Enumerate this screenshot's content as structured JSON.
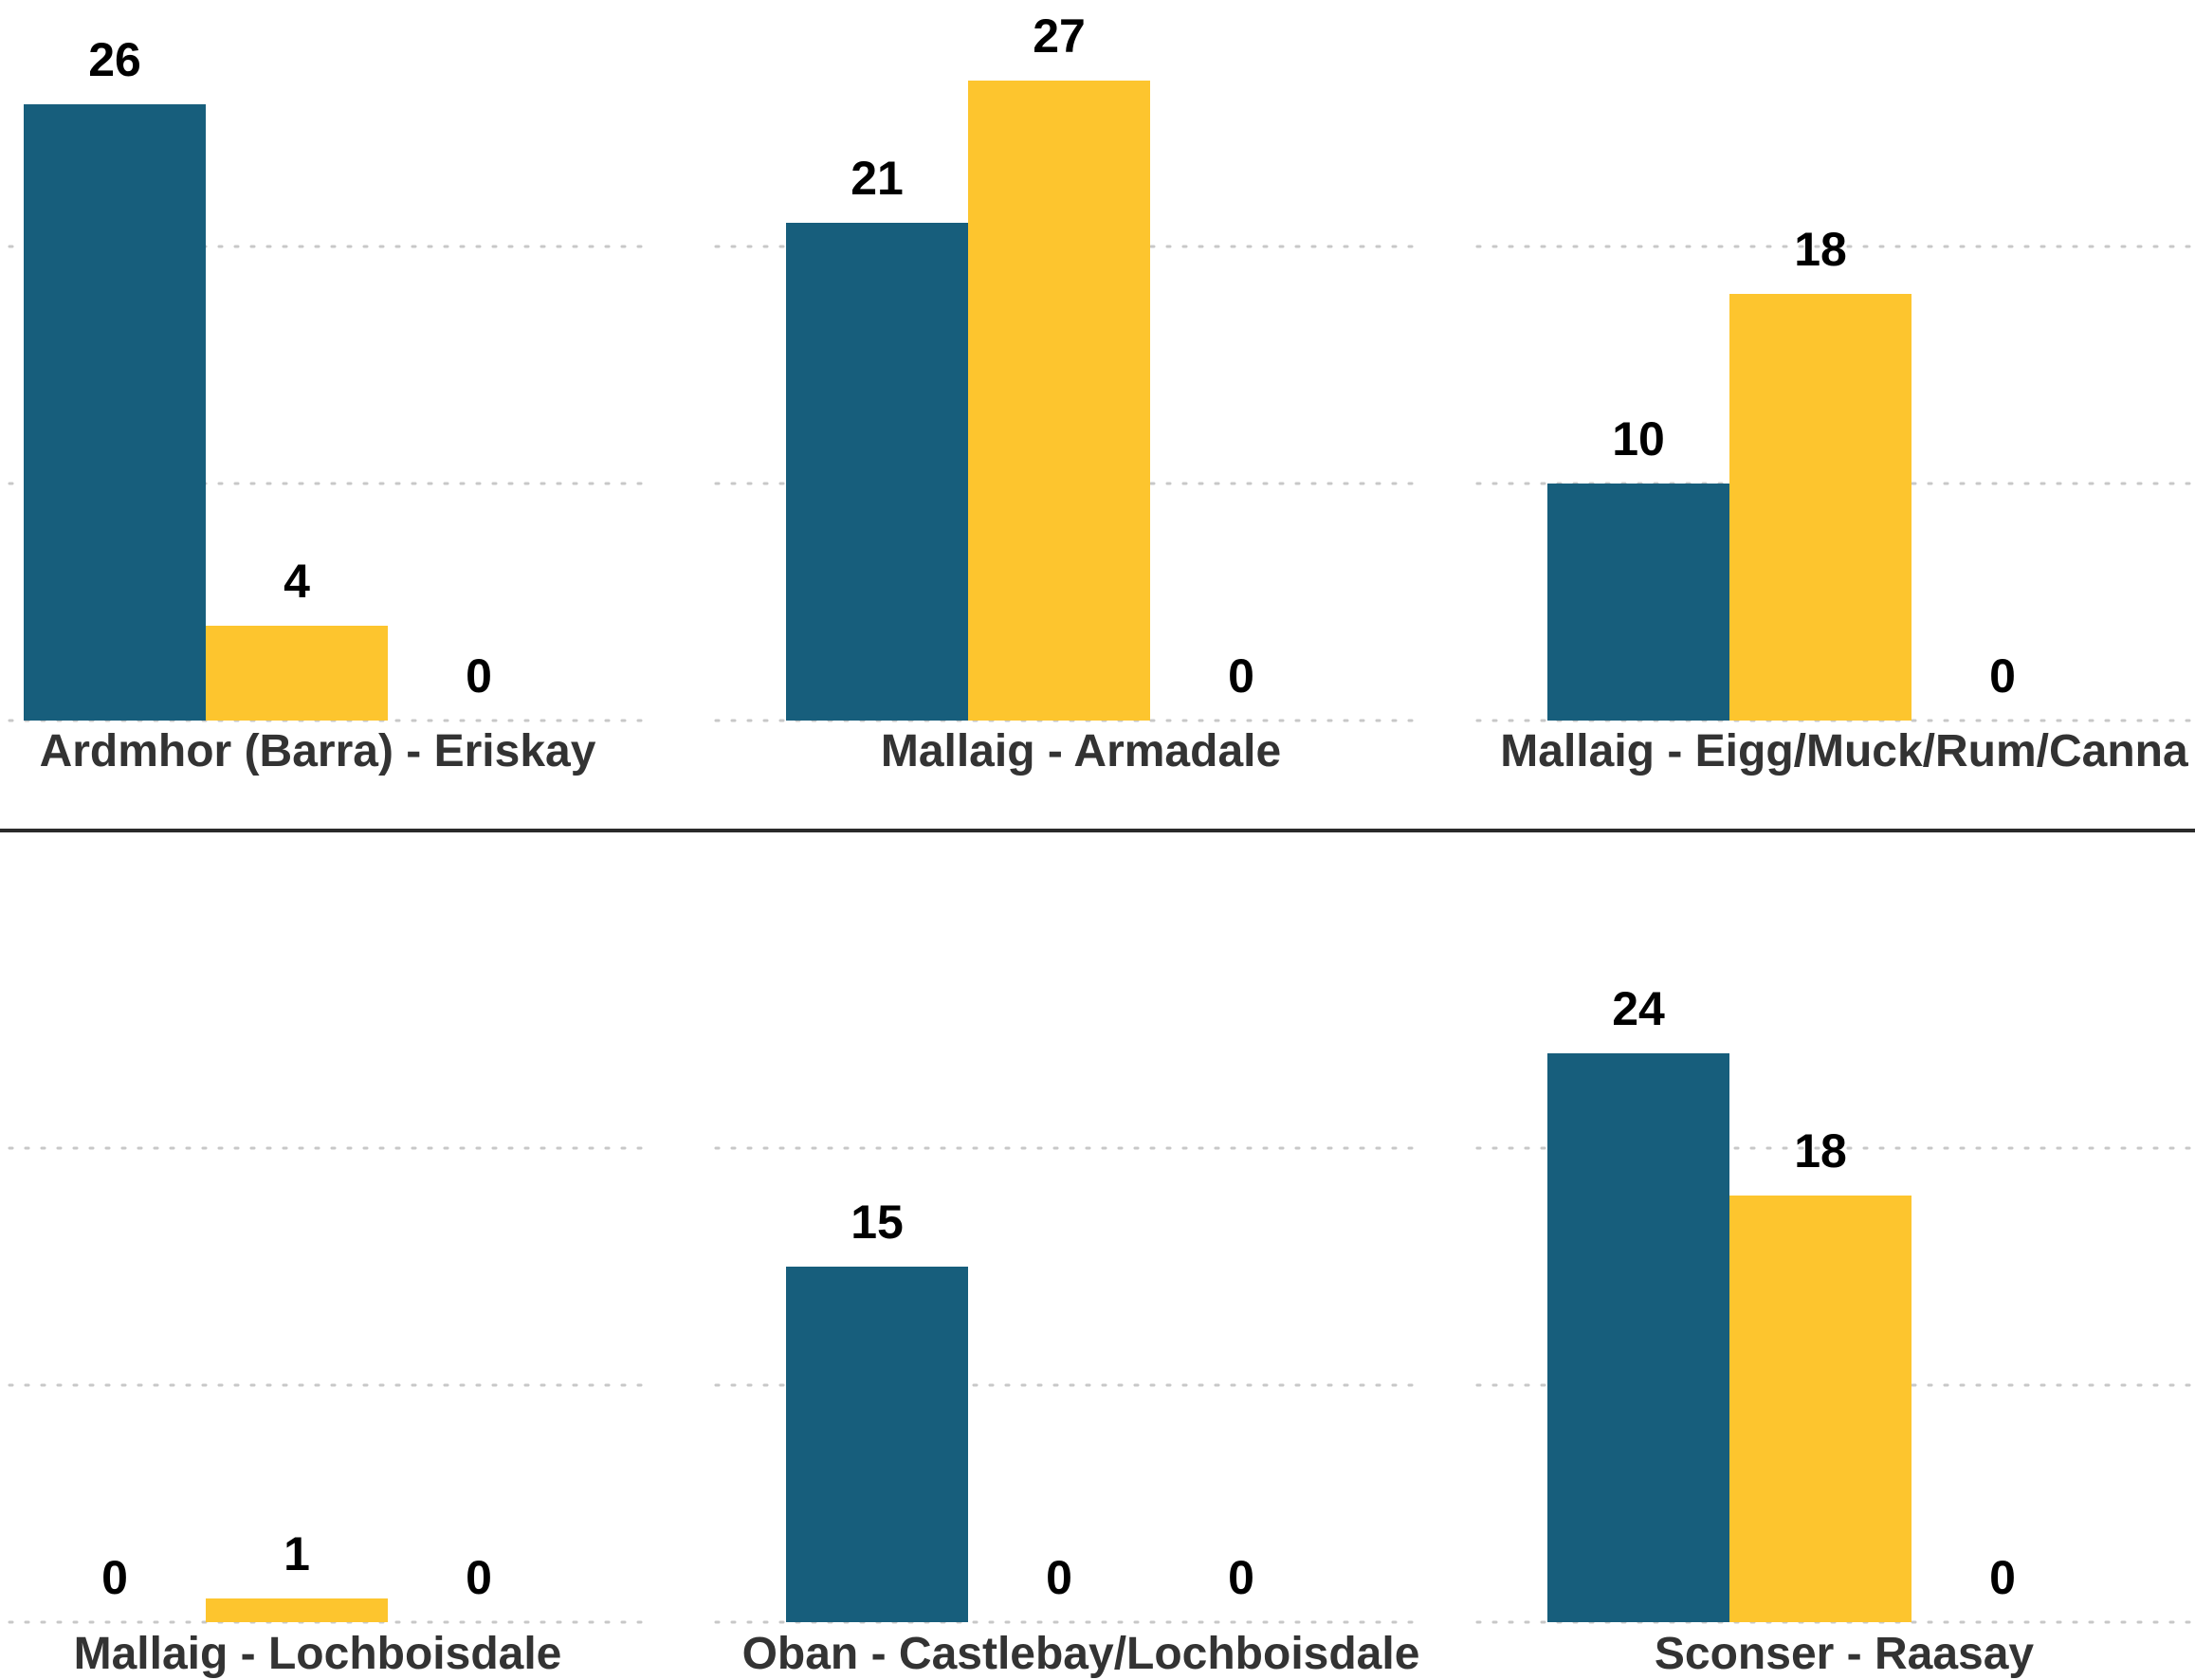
{
  "chart_data": {
    "type": "bar",
    "layout": "small-multiples",
    "grid_columns": 3,
    "grid_rows": 2,
    "ylim": [
      0,
      30
    ],
    "yticks": [
      0,
      10,
      20,
      30
    ],
    "grid": "horizontal-dotted",
    "series_colors": [
      "#175e7c",
      "#fdc52e",
      "#d9d9d9"
    ],
    "panels": [
      {
        "title": "Ardmhor (Barra) - Eriskay",
        "values": [
          26,
          4,
          0
        ]
      },
      {
        "title": "Mallaig - Armadale",
        "values": [
          21,
          27,
          0
        ]
      },
      {
        "title": "Mallaig - Eigg/Muck/Rum/Canna",
        "values": [
          10,
          18,
          0
        ]
      },
      {
        "title": "Mallaig - Lochboisdale",
        "values": [
          0,
          1,
          0
        ]
      },
      {
        "title": "Oban - Castlebay/Lochboisdale",
        "values": [
          15,
          0,
          0
        ]
      },
      {
        "title": "Sconser - Raasay",
        "values": [
          24,
          18,
          0
        ]
      }
    ]
  }
}
